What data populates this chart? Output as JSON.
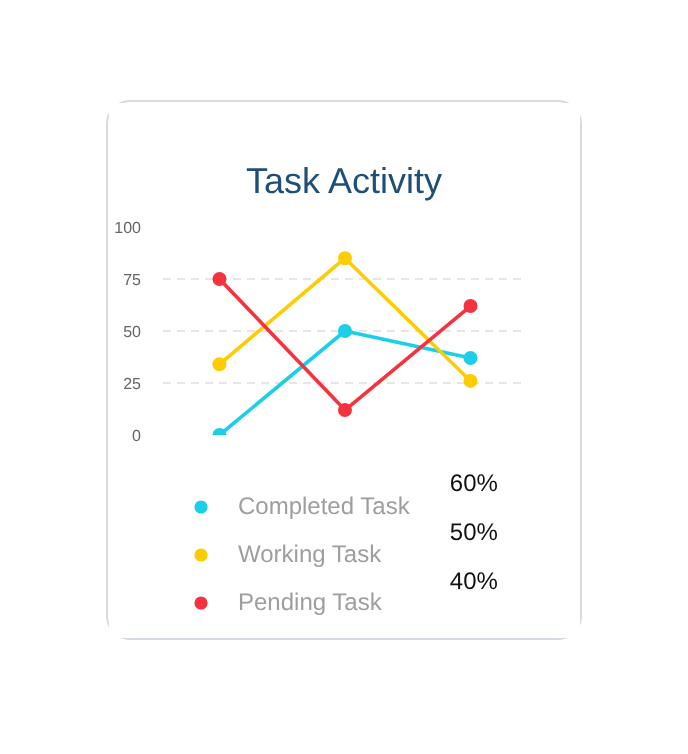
{
  "chart_data": {
    "type": "line",
    "title": "Task Activity",
    "categories": [
      null,
      null,
      null
    ],
    "series": [
      {
        "name": "Completed Task",
        "color": "#1ccfe8",
        "values": [
          0,
          50,
          37
        ]
      },
      {
        "name": "Working Task",
        "color": "#ffcc00",
        "values": [
          34,
          85,
          26
        ]
      },
      {
        "name": "Pending Task",
        "color": "#f5333f",
        "values": [
          75,
          12,
          62
        ]
      }
    ],
    "annotations": [
      "60%",
      "50%",
      "40%"
    ],
    "ylim": [
      0,
      100
    ],
    "yticks": [
      0,
      25,
      50,
      75,
      100
    ],
    "grid": "y",
    "legend": "bottom",
    "marker": "circle",
    "line_style": "solid",
    "tick_labels": "y"
  }
}
